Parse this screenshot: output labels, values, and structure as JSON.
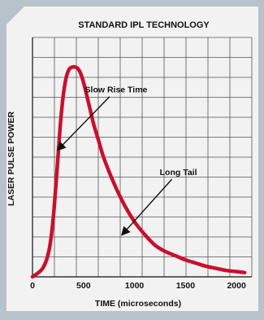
{
  "colors": {
    "curve": "#c8102e",
    "grid": "#555555",
    "card_bg": "#f2f2f2",
    "frame": "#b8c2ca",
    "text": "#111111"
  },
  "chart_data": {
    "type": "line",
    "title": "STANDARD IPL TECHNOLOGY",
    "xlabel": "TIME (microseconds)",
    "ylabel": "LASER PULSE POWER",
    "xlim": [
      0,
      2150
    ],
    "ylim": [
      0,
      1.13
    ],
    "x_ticks": [
      0,
      500,
      1000,
      1500,
      2000
    ],
    "x_tick_labels": [
      "0",
      "500",
      "1000",
      "1500",
      "2000"
    ],
    "y_ticks_labeled": false,
    "grid": true,
    "series": [
      {
        "x": [
          0,
          100,
          160,
          200,
          240,
          270,
          300,
          330,
          360,
          390,
          420,
          450,
          480,
          510,
          540,
          570,
          600,
          650,
          700,
          800,
          900,
          1000,
          1100,
          1200,
          1300,
          1400,
          1500,
          1600,
          1700,
          1800,
          1900,
          2000,
          2080
        ],
        "y": [
          0.0,
          0.04,
          0.12,
          0.26,
          0.5,
          0.7,
          0.85,
          0.94,
          0.98,
          0.99,
          0.99,
          0.98,
          0.95,
          0.9,
          0.84,
          0.78,
          0.72,
          0.64,
          0.56,
          0.44,
          0.34,
          0.26,
          0.2,
          0.15,
          0.12,
          0.1,
          0.08,
          0.065,
          0.05,
          0.04,
          0.03,
          0.025,
          0.02
        ]
      }
    ],
    "annotations": [
      {
        "text": "Slow Rise Time",
        "x": 820,
        "y": 0.87,
        "arrow_to_x": 250,
        "arrow_to_y": 0.6
      },
      {
        "text": "Long Tail",
        "x": 1430,
        "y": 0.48,
        "arrow_to_x": 880,
        "arrow_to_y": 0.2
      }
    ]
  }
}
